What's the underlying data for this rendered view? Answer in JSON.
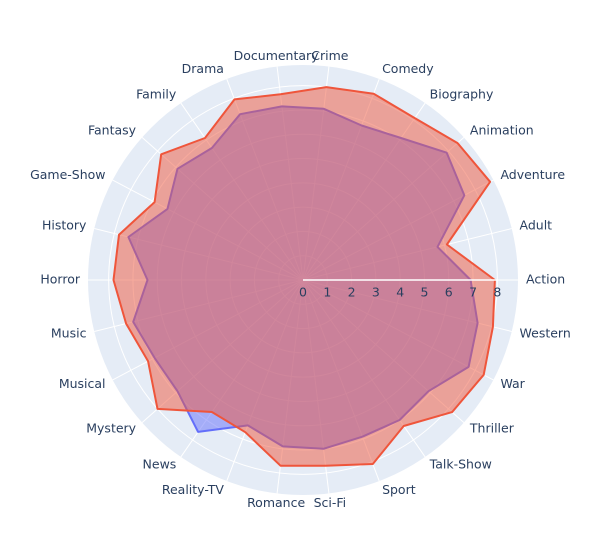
{
  "chart_data": {
    "type": "radar",
    "categories": [
      "Action",
      "Adult",
      "Adventure",
      "Animation",
      "Biography",
      "Comedy",
      "Crime",
      "Documentary",
      "Drama",
      "Family",
      "Fantasy",
      "Game-Show",
      "History",
      "Horror",
      "Music",
      "Musical",
      "Mystery",
      "News",
      "Reality-TV",
      "Romance",
      "Sci-Fi",
      "Sport",
      "Talk-Show",
      "Thriller",
      "War",
      "Western"
    ],
    "series": [
      {
        "color": "#636efa",
        "values": [
          6.9,
          5.7,
          7.5,
          7.9,
          7.1,
          6.8,
          7.1,
          7.2,
          7.3,
          6.6,
          6.9,
          6.3,
          7.4,
          6.4,
          7.2,
          6.9,
          6.9,
          7.6,
          6.4,
          6.9,
          7.0,
          6.9,
          7.0,
          6.9,
          7.7,
          7.4
        ]
      },
      {
        "color": "#ef553b",
        "values": [
          7.9,
          6.1,
          8.7,
          8.5,
          8.1,
          8.2,
          8.0,
          7.7,
          7.95,
          7.1,
          7.8,
          6.9,
          7.8,
          7.8,
          7.5,
          7.2,
          8.0,
          6.6,
          6.7,
          7.7,
          7.7,
          8.1,
          7.3,
          8.2,
          8.4,
          8.05
        ]
      }
    ],
    "rlim": [
      0,
      8.85
    ],
    "rticks": [
      0,
      1,
      2,
      3,
      4,
      5,
      6,
      7,
      8
    ],
    "grid": true
  }
}
